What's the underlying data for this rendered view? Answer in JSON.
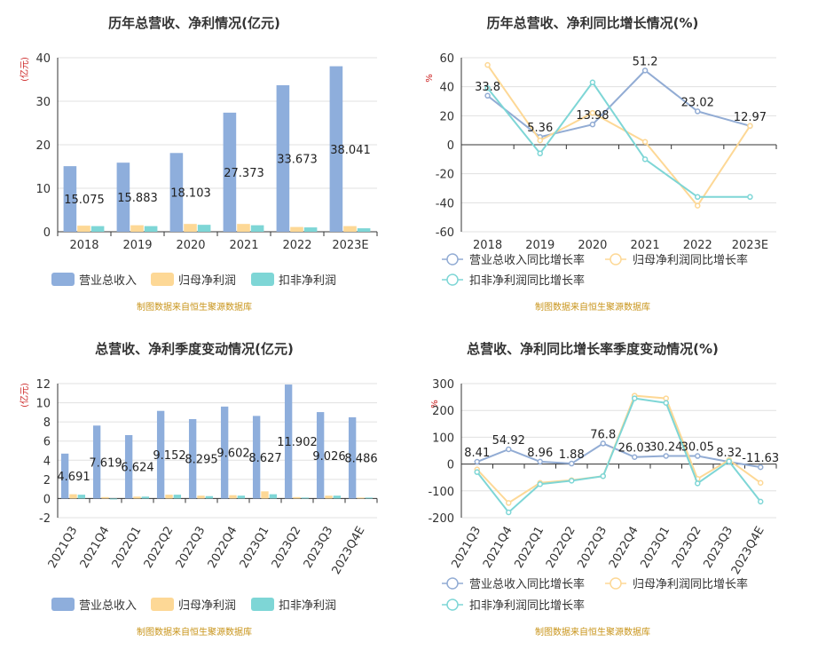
{
  "colors": {
    "revenue": "#8eaedc",
    "net_profit": "#fdd896",
    "deducted_profit": "#7ed6d6",
    "revenue_line": "#92acd4",
    "axis_unit": "#cc2222",
    "grid": "#e0e0e0",
    "source": "#c8941a"
  },
  "chart_data": [
    {
      "id": "annual_value",
      "type": "bar",
      "title": "历年总营收、净利情况(亿元)",
      "ylabel": "(亿元)",
      "ylim": [
        0,
        40
      ],
      "yticks": [
        0,
        10,
        20,
        30,
        40
      ],
      "categories": [
        "2018",
        "2019",
        "2020",
        "2021",
        "2022",
        "2023E"
      ],
      "series": [
        {
          "name": "营业总收入",
          "values": [
            15.075,
            15.883,
            18.103,
            27.373,
            33.673,
            38.041
          ]
        },
        {
          "name": "归母净利润",
          "values": [
            1.4,
            1.5,
            1.8,
            1.8,
            1.1,
            1.3
          ]
        },
        {
          "name": "扣非净利润",
          "values": [
            1.3,
            1.3,
            1.6,
            1.5,
            1.0,
            0.8
          ]
        }
      ],
      "data_labels": [
        "15.075",
        "15.883",
        "18.103",
        "27.373",
        "33.673",
        "38.041"
      ],
      "legend": [
        "营业总收入",
        "归母净利润",
        "扣非净利润"
      ],
      "source": "制图数据来自恒生聚源数据库"
    },
    {
      "id": "annual_growth",
      "type": "line",
      "title": "历年总营收、净利同比增长情况(%)",
      "ylabel": "%",
      "ylim": [
        -60,
        60
      ],
      "yticks": [
        -60,
        -40,
        -20,
        0,
        20,
        40,
        60
      ],
      "categories": [
        "2018",
        "2019",
        "2020",
        "2021",
        "2022",
        "2023E"
      ],
      "series": [
        {
          "name": "营业总收入同比增长率",
          "values": [
            33.8,
            5.36,
            13.98,
            51.2,
            23.02,
            12.97
          ]
        },
        {
          "name": "归母净利润同比增长率",
          "values": [
            55,
            3,
            22,
            2,
            -42,
            13
          ]
        },
        {
          "name": "扣非净利润同比增长率",
          "values": [
            39,
            -6,
            43,
            -10,
            -36,
            -36
          ]
        }
      ],
      "data_labels": [
        "33.8",
        "5.36",
        "13.98",
        "51.2",
        "23.02",
        "12.97"
      ],
      "legend": [
        "营业总收入同比增长率",
        "归母净利润同比增长率",
        "扣非净利润同比增长率"
      ],
      "source": "制图数据来自恒生聚源数据库"
    },
    {
      "id": "quarter_value",
      "type": "bar",
      "title": "总营收、净利季度变动情况(亿元)",
      "ylabel": "(亿元)",
      "ylim": [
        -2,
        12
      ],
      "yticks": [
        -2,
        0,
        2,
        4,
        6,
        8,
        10,
        12
      ],
      "categories": [
        "2021Q3",
        "2021Q4",
        "2022Q1",
        "2022Q2",
        "2022Q3",
        "2022Q4",
        "2023Q1",
        "2023Q2",
        "2023Q3",
        "2023Q4E"
      ],
      "series": [
        {
          "name": "营业总收入",
          "values": [
            4.691,
            7.619,
            6.624,
            9.152,
            8.295,
            9.602,
            8.627,
            11.902,
            9.026,
            8.486
          ]
        },
        {
          "name": "归母净利润",
          "values": [
            0.45,
            0.15,
            0.2,
            0.4,
            0.3,
            0.35,
            0.75,
            0.15,
            0.3,
            0.1
          ]
        },
        {
          "name": "扣非净利润",
          "values": [
            0.4,
            -0.05,
            0.2,
            0.4,
            0.25,
            0.3,
            0.45,
            0.1,
            0.3,
            0.1
          ]
        }
      ],
      "data_labels": [
        "4.691",
        "7.619",
        "6.624",
        "9.152",
        "8.295",
        "9.602",
        "8.627",
        "11.902",
        "9.026",
        "8.486"
      ],
      "legend": [
        "营业总收入",
        "归母净利润",
        "扣非净利润"
      ],
      "source": "制图数据来自恒生聚源数据库"
    },
    {
      "id": "quarter_growth",
      "type": "line",
      "title": "总营收、净利同比增长率季度变动情况(%)",
      "ylabel": "%",
      "ylim": [
        -200,
        300
      ],
      "yticks": [
        -200,
        -100,
        0,
        100,
        200,
        300
      ],
      "categories": [
        "2021Q3",
        "2021Q4",
        "2022Q1",
        "2022Q2",
        "2022Q3",
        "2022Q4",
        "2023Q1",
        "2023Q2",
        "2023Q3",
        "2023Q4E"
      ],
      "series": [
        {
          "name": "营业总收入同比增长率",
          "values": [
            8.41,
            54.92,
            8.96,
            1.88,
            76.8,
            26.03,
            30.24,
            30.05,
            8.32,
            -11.63
          ]
        },
        {
          "name": "归母净利润同比增长率",
          "values": [
            -20,
            -145,
            -70,
            -60,
            -45,
            255,
            245,
            -55,
            15,
            -70
          ]
        },
        {
          "name": "扣非净利润同比增长率",
          "values": [
            -30,
            -180,
            -75,
            -62,
            -45,
            245,
            228,
            -72,
            10,
            -140
          ]
        }
      ],
      "data_labels": [
        "8.41",
        "54.92",
        "8.96",
        "1.88",
        "76.8",
        "26.03",
        "30.24",
        "30.05",
        "8.32",
        "-11.63"
      ],
      "legend": [
        "营业总收入同比增长率",
        "归母净利润同比增长率",
        "扣非净利润同比增长率"
      ],
      "source": "制图数据来自恒生聚源数据库"
    }
  ]
}
